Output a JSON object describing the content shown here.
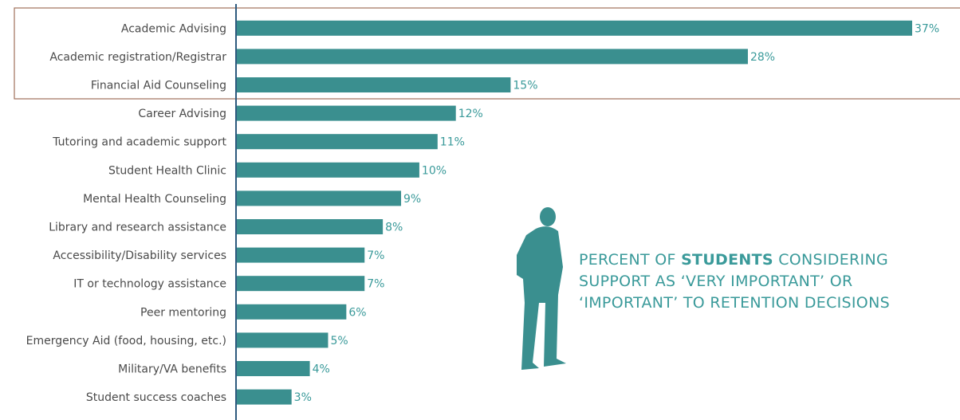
{
  "chart_data": {
    "type": "bar",
    "orientation": "horizontal",
    "categories": [
      "Academic Advising",
      "Academic registration/Registrar",
      "Financial Aid Counseling",
      "Career Advising",
      "Tutoring and academic support",
      "Student Health Clinic",
      "Mental Health Counseling",
      "Library and research assistance",
      "Accessibility/Disability services",
      "IT or technology assistance",
      "Peer mentoring",
      "Emergency Aid (food, housing, etc.)",
      "Military/VA benefits",
      "Student success coaches"
    ],
    "values": [
      37,
      28,
      15,
      12,
      11,
      10,
      9,
      8,
      7,
      7,
      6,
      5,
      4,
      3
    ],
    "value_labels": [
      "37%",
      "28%",
      "15%",
      "12%",
      "11%",
      "10%",
      "9%",
      "8%",
      "7%",
      "7%",
      "6%",
      "5%",
      "4%",
      "3%"
    ],
    "color": "#3a8f8f",
    "annotation": {
      "line1": [
        "PERCENT OF",
        "STUDENTS",
        "CONSIDERING"
      ],
      "line2": "SUPPORT AS ‘VERY IMPORTANT’ OR",
      "line3": "‘IMPORTANT’ TO RETENTION DECISIONS"
    }
  }
}
